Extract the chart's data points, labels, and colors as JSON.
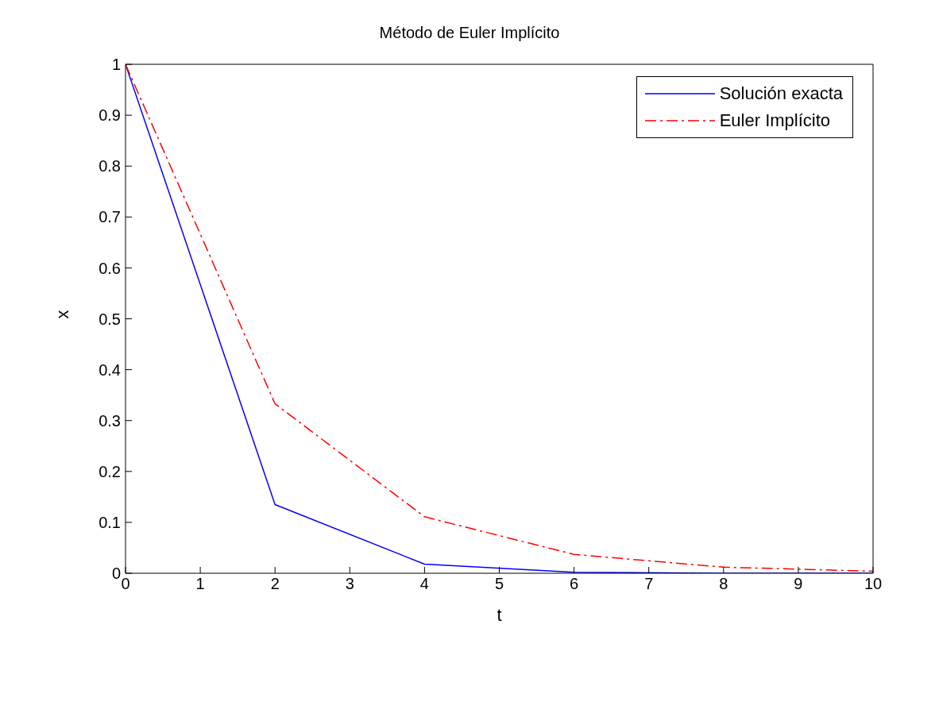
{
  "chart_data": {
    "type": "line",
    "title": "Método de Euler Implícito",
    "xlabel": "t",
    "ylabel": "x",
    "x": [
      0,
      2,
      4,
      6,
      8,
      10
    ],
    "series": [
      {
        "name": "Solución exacta",
        "color": "#0000ff",
        "values": [
          1,
          0.135,
          0.018,
          0.002,
          0,
          0
        ],
        "line_style": "solid"
      },
      {
        "name": "Euler Implícito",
        "color": "#ff0000",
        "values": [
          1,
          0.333,
          0.111,
          0.037,
          0.012,
          0.004
        ],
        "line_style": "dashed"
      }
    ],
    "xlim": [
      0,
      10
    ],
    "xticks": [
      0,
      1,
      2,
      3,
      4,
      5,
      6,
      7,
      8,
      9,
      10
    ],
    "ylim": [
      0,
      1
    ],
    "yticks": [
      0,
      0.1,
      0.2,
      0.3,
      0.4,
      0.5,
      0.6,
      0.7,
      0.8,
      0.9,
      1
    ],
    "grid": false,
    "legend": "top right",
    "marker": "none"
  }
}
